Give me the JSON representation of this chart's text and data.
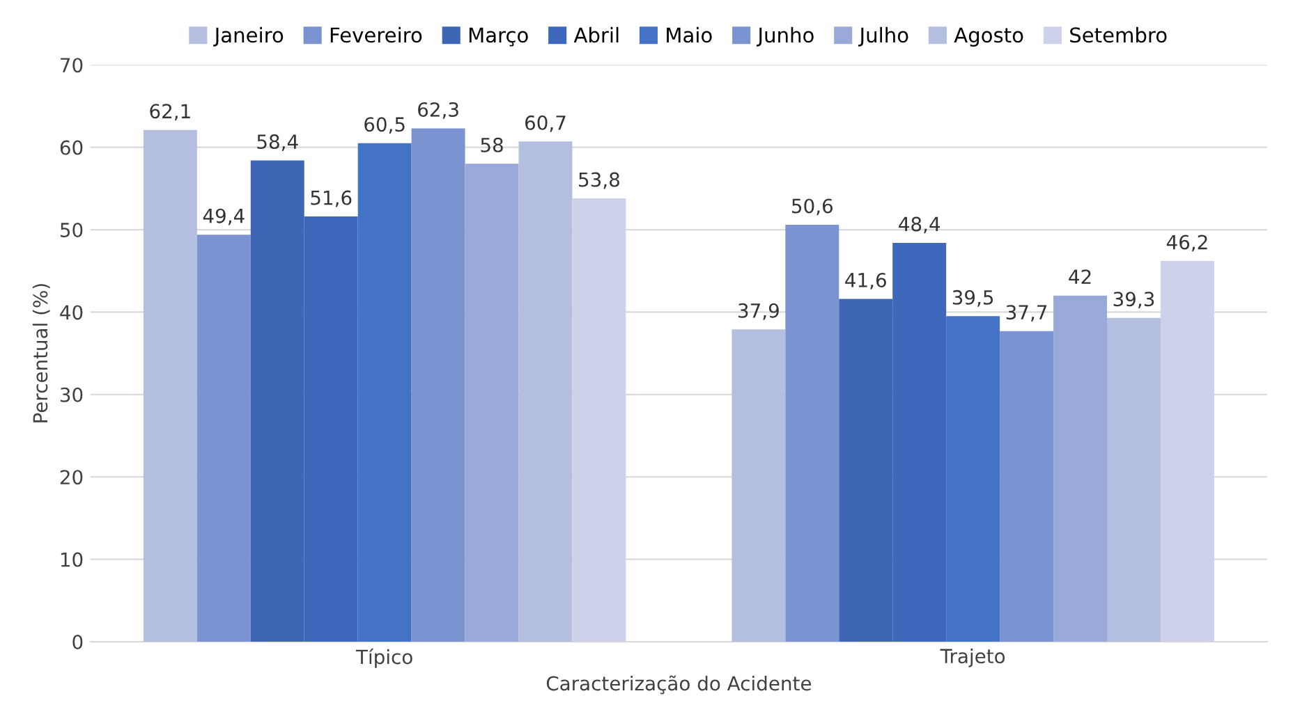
{
  "chart_data": {
    "type": "bar",
    "xlabel": "Caracterização do Acidente",
    "ylabel": "Percentual (%)",
    "categories": [
      "Típico",
      "Trajeto"
    ],
    "series": [
      {
        "name": "Janeiro",
        "color": "#b4bfe0",
        "values": [
          62.1,
          37.9
        ],
        "value_labels": [
          "62,1",
          "37,9"
        ]
      },
      {
        "name": "Fevereiro",
        "color": "#7b93d0",
        "values": [
          49.4,
          50.6
        ],
        "value_labels": [
          "49,4",
          "50,6"
        ]
      },
      {
        "name": "Março",
        "color": "#3f66b5",
        "values": [
          58.4,
          41.6
        ],
        "value_labels": [
          "58,4",
          "41,6"
        ]
      },
      {
        "name": "Abril",
        "color": "#3d68bb",
        "values": [
          51.6,
          48.4
        ],
        "value_labels": [
          "51,6",
          "48,4"
        ]
      },
      {
        "name": "Maio",
        "color": "#4472c4",
        "values": [
          60.5,
          39.5
        ],
        "value_labels": [
          "60,5",
          "39,5"
        ]
      },
      {
        "name": "Junho",
        "color": "#7b93d0",
        "values": [
          62.3,
          37.7
        ],
        "value_labels": [
          "62,3",
          "37,7"
        ]
      },
      {
        "name": "Julho",
        "color": "#9aaad8",
        "values": [
          58,
          42
        ],
        "value_labels": [
          "58",
          "42"
        ]
      },
      {
        "name": "Agosto",
        "color": "#b4bfe0",
        "values": [
          60.7,
          39.3
        ],
        "value_labels": [
          "60,7",
          "39,3"
        ]
      },
      {
        "name": "Setembro",
        "color": "#cdd2ea",
        "values": [
          53.8,
          46.2
        ],
        "value_labels": [
          "53,8",
          "46,2"
        ]
      }
    ],
    "ylim": [
      0,
      70
    ],
    "yticks": [
      0,
      10,
      20,
      30,
      40,
      50,
      60,
      70
    ],
    "grid": "y",
    "legend": "top"
  }
}
